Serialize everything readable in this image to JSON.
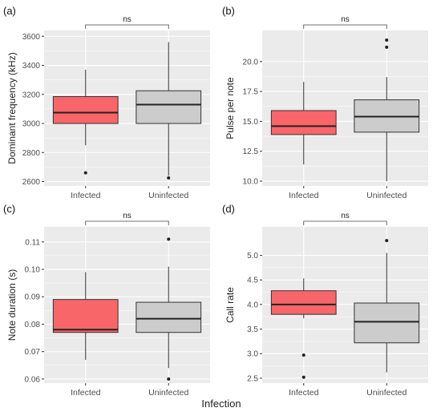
{
  "figure": {
    "x_axis_title": "Infection",
    "colors": {
      "infected": "#f8666a",
      "uninfected": "#cccccc",
      "panel_bg": "#ebebeb",
      "grid": "#ffffff",
      "text": "#4d4d4d"
    }
  },
  "chart_data": [
    {
      "type": "box",
      "panel_label": "(a)",
      "ylabel": "Dominant frequency (kHz)",
      "ylim": [
        2570,
        3640
      ],
      "yticks": [
        2600,
        2800,
        3000,
        3200,
        3400,
        3600
      ],
      "ytick_labels": [
        "2600",
        "2800",
        "3000",
        "3200",
        "3400",
        "3600"
      ],
      "categories": [
        "Infected",
        "Uninfected"
      ],
      "boxes": [
        {
          "lower_whisker": 2850,
          "q1": 3000,
          "median": 3075,
          "q3": 3185,
          "upper_whisker": 3370,
          "outliers": [
            2660
          ]
        },
        {
          "lower_whisker": 2640,
          "q1": 3000,
          "median": 3130,
          "q3": 3225,
          "upper_whisker": 3560,
          "outliers": [
            2625
          ]
        }
      ],
      "significance": "ns"
    },
    {
      "type": "box",
      "panel_label": "(b)",
      "ylabel": "Pulse per note",
      "ylim": [
        9.6,
        22.6
      ],
      "yticks": [
        10.0,
        12.5,
        15.0,
        17.5,
        20.0
      ],
      "ytick_labels": [
        "10.0",
        "12.5",
        "15.0",
        "17.5",
        "20.0"
      ],
      "categories": [
        "Infected",
        "Uninfected"
      ],
      "boxes": [
        {
          "lower_whisker": 11.4,
          "q1": 13.9,
          "median": 14.6,
          "q3": 15.9,
          "upper_whisker": 18.3,
          "outliers": []
        },
        {
          "lower_whisker": 10.0,
          "q1": 14.1,
          "median": 15.4,
          "q3": 16.8,
          "upper_whisker": 18.7,
          "outliers": [
            21.2,
            21.8
          ]
        }
      ],
      "significance": "ns"
    },
    {
      "type": "box",
      "panel_label": "(c)",
      "ylabel": "Note duration (s)",
      "ylim": [
        0.0585,
        0.1155
      ],
      "yticks": [
        0.06,
        0.07,
        0.08,
        0.09,
        0.1,
        0.11
      ],
      "ytick_labels": [
        "0.06",
        "0.07",
        "0.08",
        "0.09",
        "0.10",
        "0.11"
      ],
      "categories": [
        "Infected",
        "Uninfected"
      ],
      "boxes": [
        {
          "lower_whisker": 0.067,
          "q1": 0.077,
          "median": 0.078,
          "q3": 0.089,
          "upper_whisker": 0.099,
          "outliers": []
        },
        {
          "lower_whisker": 0.064,
          "q1": 0.077,
          "median": 0.082,
          "q3": 0.088,
          "upper_whisker": 0.101,
          "outliers": [
            0.111,
            0.06
          ]
        }
      ],
      "significance": "ns"
    },
    {
      "type": "box",
      "panel_label": "(d)",
      "ylabel": "Call rate",
      "ylim": [
        2.4,
        5.58
      ],
      "yticks": [
        2.5,
        3.0,
        3.5,
        4.0,
        4.5,
        5.0
      ],
      "ytick_labels": [
        "2.5",
        "3.0",
        "3.5",
        "4.0",
        "4.5",
        "5.0"
      ],
      "categories": [
        "Infected",
        "Uninfected"
      ],
      "boxes": [
        {
          "lower_whisker": 3.72,
          "q1": 3.8,
          "median": 4.0,
          "q3": 4.28,
          "upper_whisker": 4.53,
          "outliers": [
            2.97,
            2.52
          ]
        },
        {
          "lower_whisker": 2.62,
          "q1": 3.22,
          "median": 3.65,
          "q3": 4.03,
          "upper_whisker": 5.05,
          "outliers": [
            5.3
          ]
        }
      ],
      "significance": "ns"
    }
  ]
}
